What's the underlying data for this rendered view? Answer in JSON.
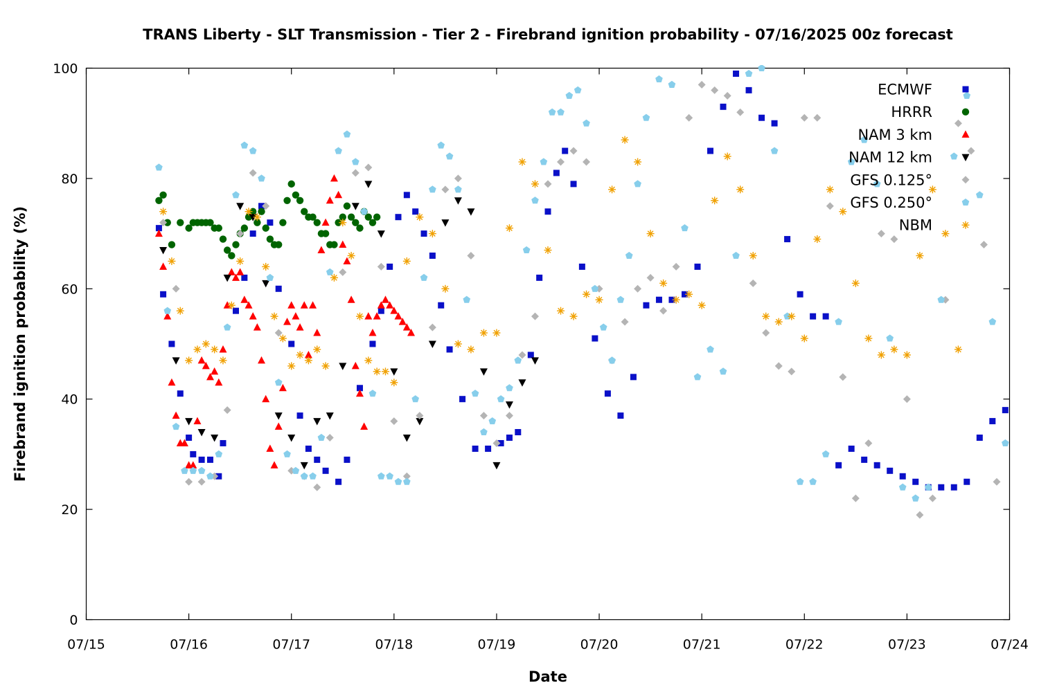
{
  "chart_data": {
    "type": "scatter",
    "title": "TRANS Liberty - SLT Transmission - Tier 2 - Firebrand ignition probability - 07/16/2025 00z forecast",
    "xlabel": "Date",
    "ylabel": "Firebrand ignition probability (%)",
    "x_ticks": [
      "07/15",
      "07/16",
      "07/17",
      "07/18",
      "07/19",
      "07/20",
      "07/21",
      "07/22",
      "07/23",
      "07/24"
    ],
    "xlim": [
      "07/15 00z",
      "07/24 00z"
    ],
    "y_ticks": [
      "0",
      "20",
      "40",
      "60",
      "80",
      "100"
    ],
    "ylim": [
      0,
      100
    ],
    "grid": false,
    "legend_position": "top-right",
    "series": [
      {
        "name": "ECMWF",
        "marker": "square",
        "color": "#0a10c8",
        "x": [
          "07/15 17z",
          "07/15 18z",
          "07/15 20z",
          "07/15 22z",
          "07/16 00z",
          "07/16 01z",
          "07/16 03z",
          "07/16 05z",
          "07/16 07z",
          "07/16 08z",
          "07/16 11z",
          "07/16 13z",
          "07/16 15z",
          "07/16 17z",
          "07/16 19z",
          "07/16 21z",
          "07/17 00z",
          "07/17 02z",
          "07/17 04z",
          "07/17 06z",
          "07/17 08z",
          "07/17 11z",
          "07/17 13z",
          "07/17 16z",
          "07/17 19z",
          "07/17 21z",
          "07/17 23z",
          "07/18 01z",
          "07/18 03z",
          "07/18 05z",
          "07/18 07z",
          "07/18 09z",
          "07/18 11z",
          "07/18 13z",
          "07/18 16z",
          "07/18 19z",
          "07/18 22z",
          "07/19 01z",
          "07/19 03z",
          "07/19 05z",
          "07/19 08z",
          "07/19 10z",
          "07/19 12z",
          "07/19 14z",
          "07/19 16z",
          "07/19 18z",
          "07/19 20z",
          "07/19 23z",
          "07/20 02z",
          "07/20 05z",
          "07/20 08z",
          "07/20 11z",
          "07/20 14z",
          "07/20 17z",
          "07/20 20z",
          "07/20 23z",
          "07/21 02z",
          "07/21 05z",
          "07/21 08z",
          "07/21 11z",
          "07/21 14z",
          "07/21 17z",
          "07/21 20z",
          "07/21 23z",
          "07/22 02z",
          "07/22 05z",
          "07/22 08z",
          "07/22 11z",
          "07/22 14z",
          "07/22 17z",
          "07/22 20z",
          "07/22 23z",
          "07/23 02z",
          "07/23 05z",
          "07/23 08z",
          "07/23 11z",
          "07/23 14z",
          "07/23 17z",
          "07/23 20z",
          "07/23 23z"
        ],
        "y": [
          71,
          59,
          50,
          41,
          33,
          30,
          29,
          29,
          26,
          32,
          56,
          62,
          70,
          75,
          72,
          60,
          50,
          37,
          31,
          29,
          27,
          25,
          29,
          42,
          50,
          56,
          64,
          73,
          77,
          74,
          70,
          66,
          57,
          49,
          40,
          31,
          31,
          32,
          33,
          34,
          48,
          62,
          74,
          81,
          85,
          79,
          64,
          51,
          41,
          37,
          44,
          57,
          58,
          58,
          59,
          64,
          85,
          93,
          99,
          96,
          91,
          90,
          69,
          59,
          55,
          55,
          28,
          31,
          29,
          28,
          27,
          26,
          25,
          24,
          24,
          24,
          25,
          33,
          36,
          38
        ],
        "y_note": "values read from markers"
      },
      {
        "name": "HRRR",
        "marker": "circle",
        "color": "#006400",
        "x": [
          "07/15 17z",
          "07/15 18z",
          "07/15 19z",
          "07/15 20z",
          "07/15 22z",
          "07/16 00z",
          "07/16 01z",
          "07/16 02z",
          "07/16 03z",
          "07/16 04z",
          "07/16 05z",
          "07/16 06z",
          "07/16 07z",
          "07/16 08z",
          "07/16 09z",
          "07/16 10z",
          "07/16 11z",
          "07/16 12z",
          "07/16 13z",
          "07/16 14z",
          "07/16 15z",
          "07/16 16z",
          "07/16 17z",
          "07/16 18z",
          "07/16 19z",
          "07/16 20z",
          "07/16 21z",
          "07/16 22z",
          "07/16 23z",
          "07/17 00z",
          "07/17 01z",
          "07/17 02z",
          "07/17 03z",
          "07/17 04z",
          "07/17 05z",
          "07/17 06z",
          "07/17 07z",
          "07/17 08z",
          "07/17 09z",
          "07/17 10z",
          "07/17 11z",
          "07/17 12z",
          "07/17 13z",
          "07/17 14z",
          "07/17 15z",
          "07/17 16z",
          "07/17 17z",
          "07/17 18z",
          "07/17 19z",
          "07/17 20z"
        ],
        "y": [
          76,
          77,
          72,
          68,
          72,
          71,
          72,
          72,
          72,
          72,
          72,
          71,
          71,
          69,
          67,
          66,
          68,
          70,
          71,
          73,
          74,
          72,
          74,
          71,
          69,
          68,
          68,
          72,
          76,
          79,
          77,
          76,
          74,
          73,
          73,
          72,
          70,
          70,
          68,
          68,
          72,
          73,
          75,
          73,
          72,
          71,
          74,
          73,
          72,
          73
        ]
      },
      {
        "name": "NAM 3 km",
        "marker": "triangle-up",
        "color": "#ff0000",
        "x": [
          "07/15 17z",
          "07/15 18z",
          "07/15 19z",
          "07/15 20z",
          "07/15 21z",
          "07/15 22z",
          "07/15 23z",
          "07/16 00z",
          "07/16 01z",
          "07/16 02z",
          "07/16 03z",
          "07/16 04z",
          "07/16 05z",
          "07/16 06z",
          "07/16 07z",
          "07/16 08z",
          "07/16 09z",
          "07/16 10z",
          "07/16 11z",
          "07/16 12z",
          "07/16 13z",
          "07/16 14z",
          "07/16 15z",
          "07/16 16z",
          "07/16 17z",
          "07/16 18z",
          "07/16 19z",
          "07/16 20z",
          "07/16 21z",
          "07/16 22z",
          "07/16 23z",
          "07/17 00z",
          "07/17 01z",
          "07/17 02z",
          "07/17 03z",
          "07/17 04z",
          "07/17 05z",
          "07/17 06z",
          "07/17 07z",
          "07/17 08z",
          "07/17 09z",
          "07/17 10z",
          "07/17 11z",
          "07/17 12z",
          "07/17 13z",
          "07/17 14z",
          "07/17 15z",
          "07/17 16z",
          "07/17 17z",
          "07/17 18z",
          "07/17 19z",
          "07/17 20z",
          "07/17 21z",
          "07/17 22z",
          "07/17 23z",
          "07/18 00z",
          "07/18 01z",
          "07/18 02z",
          "07/18 03z",
          "07/18 04z"
        ],
        "y": [
          70,
          64,
          55,
          43,
          37,
          32,
          32,
          28,
          28,
          36,
          47,
          46,
          44,
          45,
          43,
          49,
          57,
          63,
          62,
          63,
          58,
          57,
          55,
          53,
          47,
          40,
          31,
          28,
          35,
          42,
          54,
          57,
          55,
          53,
          57,
          48,
          57,
          52,
          67,
          72,
          76,
          80,
          77,
          68,
          65,
          58,
          46,
          41,
          35,
          55,
          52,
          55,
          57,
          58,
          57,
          56,
          55,
          54,
          53,
          52
        ]
      },
      {
        "name": "NAM 12 km",
        "marker": "triangle-down",
        "color": "#000000",
        "x": [
          "07/15 18z",
          "07/15 21z",
          "07/16 00z",
          "07/16 03z",
          "07/16 06z",
          "07/16 09z",
          "07/16 12z",
          "07/16 15z",
          "07/16 18z",
          "07/16 21z",
          "07/17 00z",
          "07/17 03z",
          "07/17 06z",
          "07/17 09z",
          "07/17 12z",
          "07/17 15z",
          "07/17 18z",
          "07/17 21z",
          "07/18 00z",
          "07/18 03z",
          "07/18 06z",
          "07/18 09z",
          "07/18 12z",
          "07/18 15z",
          "07/18 18z",
          "07/18 21z",
          "07/19 00z",
          "07/19 03z",
          "07/19 06z",
          "07/19 09z"
        ],
        "y": [
          67,
          47,
          36,
          34,
          33,
          62,
          75,
          73,
          61,
          37,
          33,
          28,
          36,
          37,
          46,
          75,
          79,
          70,
          45,
          33,
          36,
          50,
          72,
          76,
          74,
          45,
          28,
          39,
          43,
          47
        ]
      },
      {
        "name": "GFS 0.125°",
        "marker": "diamond",
        "color": "#b4b4b4",
        "x": [
          "07/15 18z",
          "07/15 21z",
          "07/16 00z",
          "07/16 03z",
          "07/16 06z",
          "07/16 09z",
          "07/16 12z",
          "07/16 15z",
          "07/16 18z",
          "07/16 21z",
          "07/17 00z",
          "07/17 03z",
          "07/17 06z",
          "07/17 09z",
          "07/17 12z",
          "07/17 15z",
          "07/17 18z",
          "07/17 21z",
          "07/18 00z",
          "07/18 03z",
          "07/18 06z",
          "07/18 09z",
          "07/18 12z",
          "07/18 15z",
          "07/18 18z",
          "07/18 21z",
          "07/19 00z",
          "07/19 03z",
          "07/19 06z",
          "07/19 09z",
          "07/19 12z",
          "07/19 15z",
          "07/19 18z",
          "07/19 21z",
          "07/20 00z",
          "07/20 03z",
          "07/20 06z",
          "07/20 09z",
          "07/20 12z",
          "07/20 15z",
          "07/20 18z",
          "07/20 21z",
          "07/21 00z",
          "07/21 03z",
          "07/21 06z",
          "07/21 09z",
          "07/21 12z",
          "07/21 15z",
          "07/21 18z",
          "07/21 21z",
          "07/22 00z",
          "07/22 03z",
          "07/22 06z",
          "07/22 09z",
          "07/22 12z",
          "07/22 15z",
          "07/22 18z",
          "07/22 21z",
          "07/23 00z",
          "07/23 03z",
          "07/23 06z",
          "07/23 09z",
          "07/23 12z",
          "07/23 15z",
          "07/23 18z",
          "07/23 21z"
        ],
        "y": [
          72,
          60,
          25,
          25,
          26,
          38,
          70,
          81,
          75,
          52,
          27,
          26,
          24,
          33,
          63,
          81,
          82,
          64,
          36,
          26,
          37,
          53,
          78,
          80,
          66,
          37,
          32,
          37,
          48,
          55,
          79,
          83,
          85,
          83,
          60,
          47,
          54,
          60,
          62,
          56,
          64,
          91,
          97,
          96,
          95,
          92,
          61,
          52,
          46,
          45,
          91,
          91,
          75,
          44,
          22,
          32,
          70,
          69,
          40,
          19,
          22,
          58,
          90,
          85,
          68,
          25
        ]
      },
      {
        "name": "GFS 0.250°",
        "marker": "pentagon",
        "color": "#87ceeb",
        "x": [
          "07/15 17z",
          "07/15 19z",
          "07/15 21z",
          "07/15 23z",
          "07/16 01z",
          "07/16 03z",
          "07/16 05z",
          "07/16 07z",
          "07/16 09z",
          "07/16 11z",
          "07/16 13z",
          "07/16 15z",
          "07/16 17z",
          "07/16 19z",
          "07/16 21z",
          "07/16 23z",
          "07/17 01z",
          "07/17 03z",
          "07/17 05z",
          "07/17 07z",
          "07/17 09z",
          "07/17 11z",
          "07/17 13z",
          "07/17 15z",
          "07/17 17z",
          "07/17 19z",
          "07/17 21z",
          "07/17 23z",
          "07/18 01z",
          "07/18 03z",
          "07/18 05z",
          "07/18 07z",
          "07/18 09z",
          "07/18 11z",
          "07/18 13z",
          "07/18 15z",
          "07/18 17z",
          "07/18 19z",
          "07/18 21z",
          "07/18 23z",
          "07/19 01z",
          "07/19 03z",
          "07/19 05z",
          "07/19 07z",
          "07/19 09z",
          "07/19 11z",
          "07/19 13z",
          "07/19 15z",
          "07/19 17z",
          "07/19 19z",
          "07/19 21z",
          "07/19 23z",
          "07/20 01z",
          "07/20 03z",
          "07/20 05z",
          "07/20 07z",
          "07/20 09z",
          "07/20 11z",
          "07/20 14z",
          "07/20 17z",
          "07/20 20z",
          "07/20 23z",
          "07/21 02z",
          "07/21 05z",
          "07/21 08z",
          "07/21 11z",
          "07/21 14z",
          "07/21 17z",
          "07/21 20z",
          "07/21 23z",
          "07/22 02z",
          "07/22 05z",
          "07/22 08z",
          "07/22 11z",
          "07/22 14z",
          "07/22 17z",
          "07/22 20z",
          "07/22 23z",
          "07/23 02z",
          "07/23 05z",
          "07/23 08z",
          "07/23 11z",
          "07/23 14z",
          "07/23 17z",
          "07/23 20z",
          "07/23 23z"
        ],
        "y": [
          82,
          56,
          35,
          27,
          27,
          27,
          26,
          30,
          53,
          77,
          86,
          85,
          80,
          62,
          43,
          30,
          27,
          26,
          26,
          33,
          63,
          85,
          88,
          83,
          74,
          41,
          26,
          26,
          25,
          25,
          40,
          62,
          78,
          86,
          84,
          78,
          58,
          41,
          34,
          36,
          40,
          42,
          47,
          67,
          76,
          83,
          92,
          92,
          95,
          96,
          90,
          60,
          53,
          47,
          58,
          66,
          79,
          91,
          98,
          97,
          71,
          44,
          49,
          45,
          66,
          99,
          100,
          85,
          55,
          25,
          25,
          30,
          54,
          83,
          87,
          79,
          51,
          24,
          22,
          24,
          58,
          84,
          95,
          77,
          54,
          32
        ]
      },
      {
        "name": "NBM",
        "marker": "star",
        "color": "#f0a000",
        "x": [
          "07/15 18z",
          "07/15 20z",
          "07/15 22z",
          "07/16 00z",
          "07/16 02z",
          "07/16 04z",
          "07/16 06z",
          "07/16 08z",
          "07/16 10z",
          "07/16 12z",
          "07/16 14z",
          "07/16 16z",
          "07/16 18z",
          "07/16 20z",
          "07/16 22z",
          "07/17 00z",
          "07/17 02z",
          "07/17 04z",
          "07/17 06z",
          "07/17 08z",
          "07/17 10z",
          "07/17 12z",
          "07/17 14z",
          "07/17 16z",
          "07/17 18z",
          "07/17 20z",
          "07/17 22z",
          "07/18 00z",
          "07/18 03z",
          "07/18 06z",
          "07/18 09z",
          "07/18 12z",
          "07/18 15z",
          "07/18 18z",
          "07/18 21z",
          "07/19 00z",
          "07/19 03z",
          "07/19 06z",
          "07/19 09z",
          "07/19 12z",
          "07/19 15z",
          "07/19 18z",
          "07/19 21z",
          "07/20 00z",
          "07/20 03z",
          "07/20 06z",
          "07/20 09z",
          "07/20 12z",
          "07/20 15z",
          "07/20 18z",
          "07/20 21z",
          "07/21 00z",
          "07/21 03z",
          "07/21 06z",
          "07/21 09z",
          "07/21 12z",
          "07/21 15z",
          "07/21 18z",
          "07/21 21z",
          "07/22 00z",
          "07/22 03z",
          "07/22 06z",
          "07/22 09z",
          "07/22 12z",
          "07/22 15z",
          "07/22 18z",
          "07/22 21z",
          "07/23 00z",
          "07/23 03z",
          "07/23 06z",
          "07/23 09z",
          "07/23 12z",
          "07/23 15z",
          "07/23 18z",
          "07/23 21z",
          "07/24 00z"
        ],
        "y": [
          74,
          65,
          56,
          47,
          49,
          50,
          49,
          47,
          57,
          65,
          74,
          73,
          64,
          55,
          51,
          46,
          48,
          47,
          49,
          46,
          62,
          72,
          66,
          55,
          47,
          45,
          45,
          43,
          65,
          73,
          70,
          60,
          50,
          49,
          52,
          52,
          71,
          83,
          79,
          67,
          56,
          55,
          59,
          58,
          78,
          87,
          83,
          70,
          61,
          58,
          59,
          57,
          76,
          84,
          78,
          66,
          55,
          54,
          55,
          51,
          69,
          78,
          74,
          61,
          51,
          48,
          49,
          48,
          66,
          78,
          70,
          49,
          null,
          null,
          null,
          null
        ]
      }
    ]
  }
}
